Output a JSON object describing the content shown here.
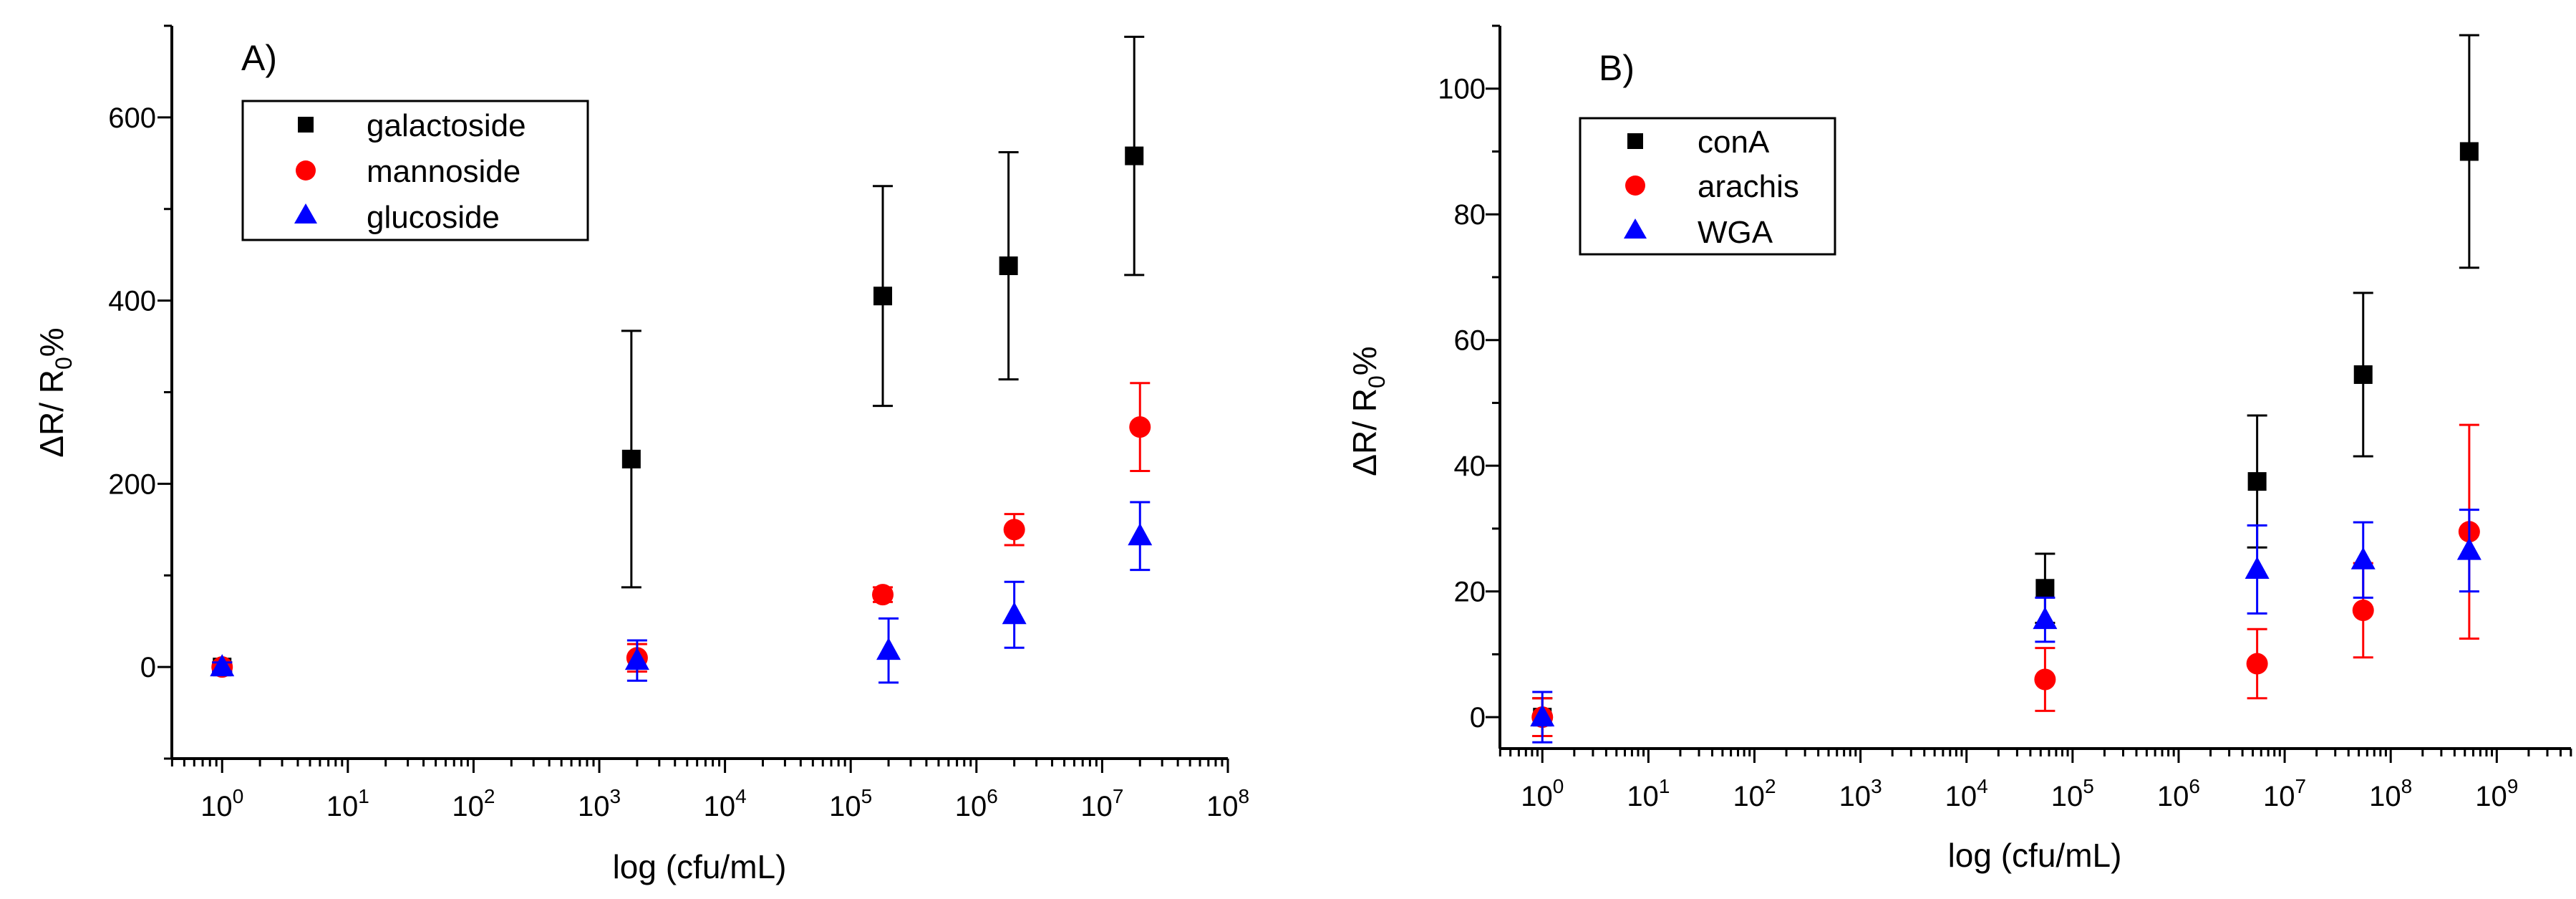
{
  "chart_data": [
    {
      "type": "scatter",
      "panel_label": "A)",
      "xlabel": "log (cfu/mL)",
      "ylabel": "ΔR/ R",
      "ylabel_sub": "0",
      "ylabel_suffix": "%",
      "x_scale": "log",
      "xlim_log10": [
        -0.4,
        8
      ],
      "ylim": [
        -100,
        700
      ],
      "xticks": [
        {
          "base": "10",
          "exp": "0",
          "pos": 0
        },
        {
          "base": "10",
          "exp": "1",
          "pos": 1
        },
        {
          "base": "10",
          "exp": "2",
          "pos": 2
        },
        {
          "base": "10",
          "exp": "3",
          "pos": 3
        },
        {
          "base": "10",
          "exp": "4",
          "pos": 4
        },
        {
          "base": "10",
          "exp": "5",
          "pos": 5
        },
        {
          "base": "10",
          "exp": "6",
          "pos": 6
        },
        {
          "base": "10",
          "exp": "7",
          "pos": 7
        },
        {
          "base": "10",
          "exp": "8",
          "pos": 8
        }
      ],
      "yticks": [
        0,
        200,
        400,
        600
      ],
      "y_minor_step": 100,
      "legend_position": "top-left",
      "series": [
        {
          "name": "galactoside",
          "marker": "square",
          "color": "#000000",
          "points": [
            {
              "x": 1,
              "y": 0,
              "err": 5
            },
            {
              "x": 1800,
              "y": 227,
              "err": 140
            },
            {
              "x": 180000,
              "y": 405,
              "err": 120
            },
            {
              "x": 1800000,
              "y": 438,
              "err": 124
            },
            {
              "x": 18000000,
              "y": 558,
              "err": 130
            }
          ]
        },
        {
          "name": "mannoside",
          "marker": "circle",
          "color": "#ff0000",
          "points": [
            {
              "x": 1,
              "y": 0,
              "err": 5
            },
            {
              "x": 2000,
              "y": 10,
              "err": 15
            },
            {
              "x": 180000,
              "y": 79,
              "err": 8
            },
            {
              "x": 2000000,
              "y": 150,
              "err": 17
            },
            {
              "x": 20000000,
              "y": 262,
              "err": 48
            }
          ]
        },
        {
          "name": "glucoside",
          "marker": "triangle",
          "color": "#0000ff",
          "points": [
            {
              "x": 1,
              "y": 0,
              "err": 5
            },
            {
              "x": 2000,
              "y": 7,
              "err": 22
            },
            {
              "x": 200000,
              "y": 18,
              "err": 35
            },
            {
              "x": 2000000,
              "y": 57,
              "err": 36
            },
            {
              "x": 20000000,
              "y": 143,
              "err": 37
            }
          ]
        }
      ]
    },
    {
      "type": "scatter",
      "panel_label": "B)",
      "xlabel": "log (cfu/mL)",
      "ylabel": "ΔR/ R",
      "ylabel_sub": "0",
      "ylabel_suffix": "%",
      "x_scale": "log",
      "xlim_log10": [
        -0.4,
        9.7
      ],
      "ylim": [
        -5,
        110
      ],
      "xticks": [
        {
          "base": "10",
          "exp": "0",
          "pos": 0
        },
        {
          "base": "10",
          "exp": "1",
          "pos": 1
        },
        {
          "base": "10",
          "exp": "2",
          "pos": 2
        },
        {
          "base": "10",
          "exp": "3",
          "pos": 3
        },
        {
          "base": "10",
          "exp": "4",
          "pos": 4
        },
        {
          "base": "10",
          "exp": "5",
          "pos": 5
        },
        {
          "base": "10",
          "exp": "6",
          "pos": 6
        },
        {
          "base": "10",
          "exp": "7",
          "pos": 7
        },
        {
          "base": "10",
          "exp": "8",
          "pos": 8
        },
        {
          "base": "10",
          "exp": "9",
          "pos": 9
        }
      ],
      "yticks": [
        0,
        20,
        40,
        60,
        80,
        100
      ],
      "y_minor_step": 10,
      "legend_position": "top-left",
      "series": [
        {
          "name": "conA",
          "marker": "square",
          "color": "#000000",
          "points": [
            {
              "x": 1,
              "y": 0,
              "err": 3
            },
            {
              "x": 55000,
              "y": 20.5,
              "err": 5.5
            },
            {
              "x": 5500000,
              "y": 37.5,
              "err": 10.5
            },
            {
              "x": 55000000,
              "y": 54.5,
              "err": 13
            },
            {
              "x": 550000000,
              "y": 90,
              "err": 18.5
            }
          ]
        },
        {
          "name": "arachis",
          "marker": "circle",
          "color": "#ff0000",
          "points": [
            {
              "x": 1,
              "y": 0,
              "err": 3
            },
            {
              "x": 55000,
              "y": 6,
              "err": 5
            },
            {
              "x": 5500000,
              "y": 8.5,
              "err": 5.5
            },
            {
              "x": 55000000,
              "y": 17,
              "err": 7.5
            },
            {
              "x": 550000000,
              "y": 29.5,
              "err": 17
            }
          ]
        },
        {
          "name": "WGA",
          "marker": "triangle",
          "color": "#0000ff",
          "points": [
            {
              "x": 1,
              "y": 0,
              "err": 4
            },
            {
              "x": 55000,
              "y": 15.5,
              "err": 3.5
            },
            {
              "x": 5500000,
              "y": 23.5,
              "err": 7
            },
            {
              "x": 55000000,
              "y": 25,
              "err": 6
            },
            {
              "x": 550000000,
              "y": 26.5,
              "err": 6.5
            }
          ]
        }
      ]
    }
  ]
}
